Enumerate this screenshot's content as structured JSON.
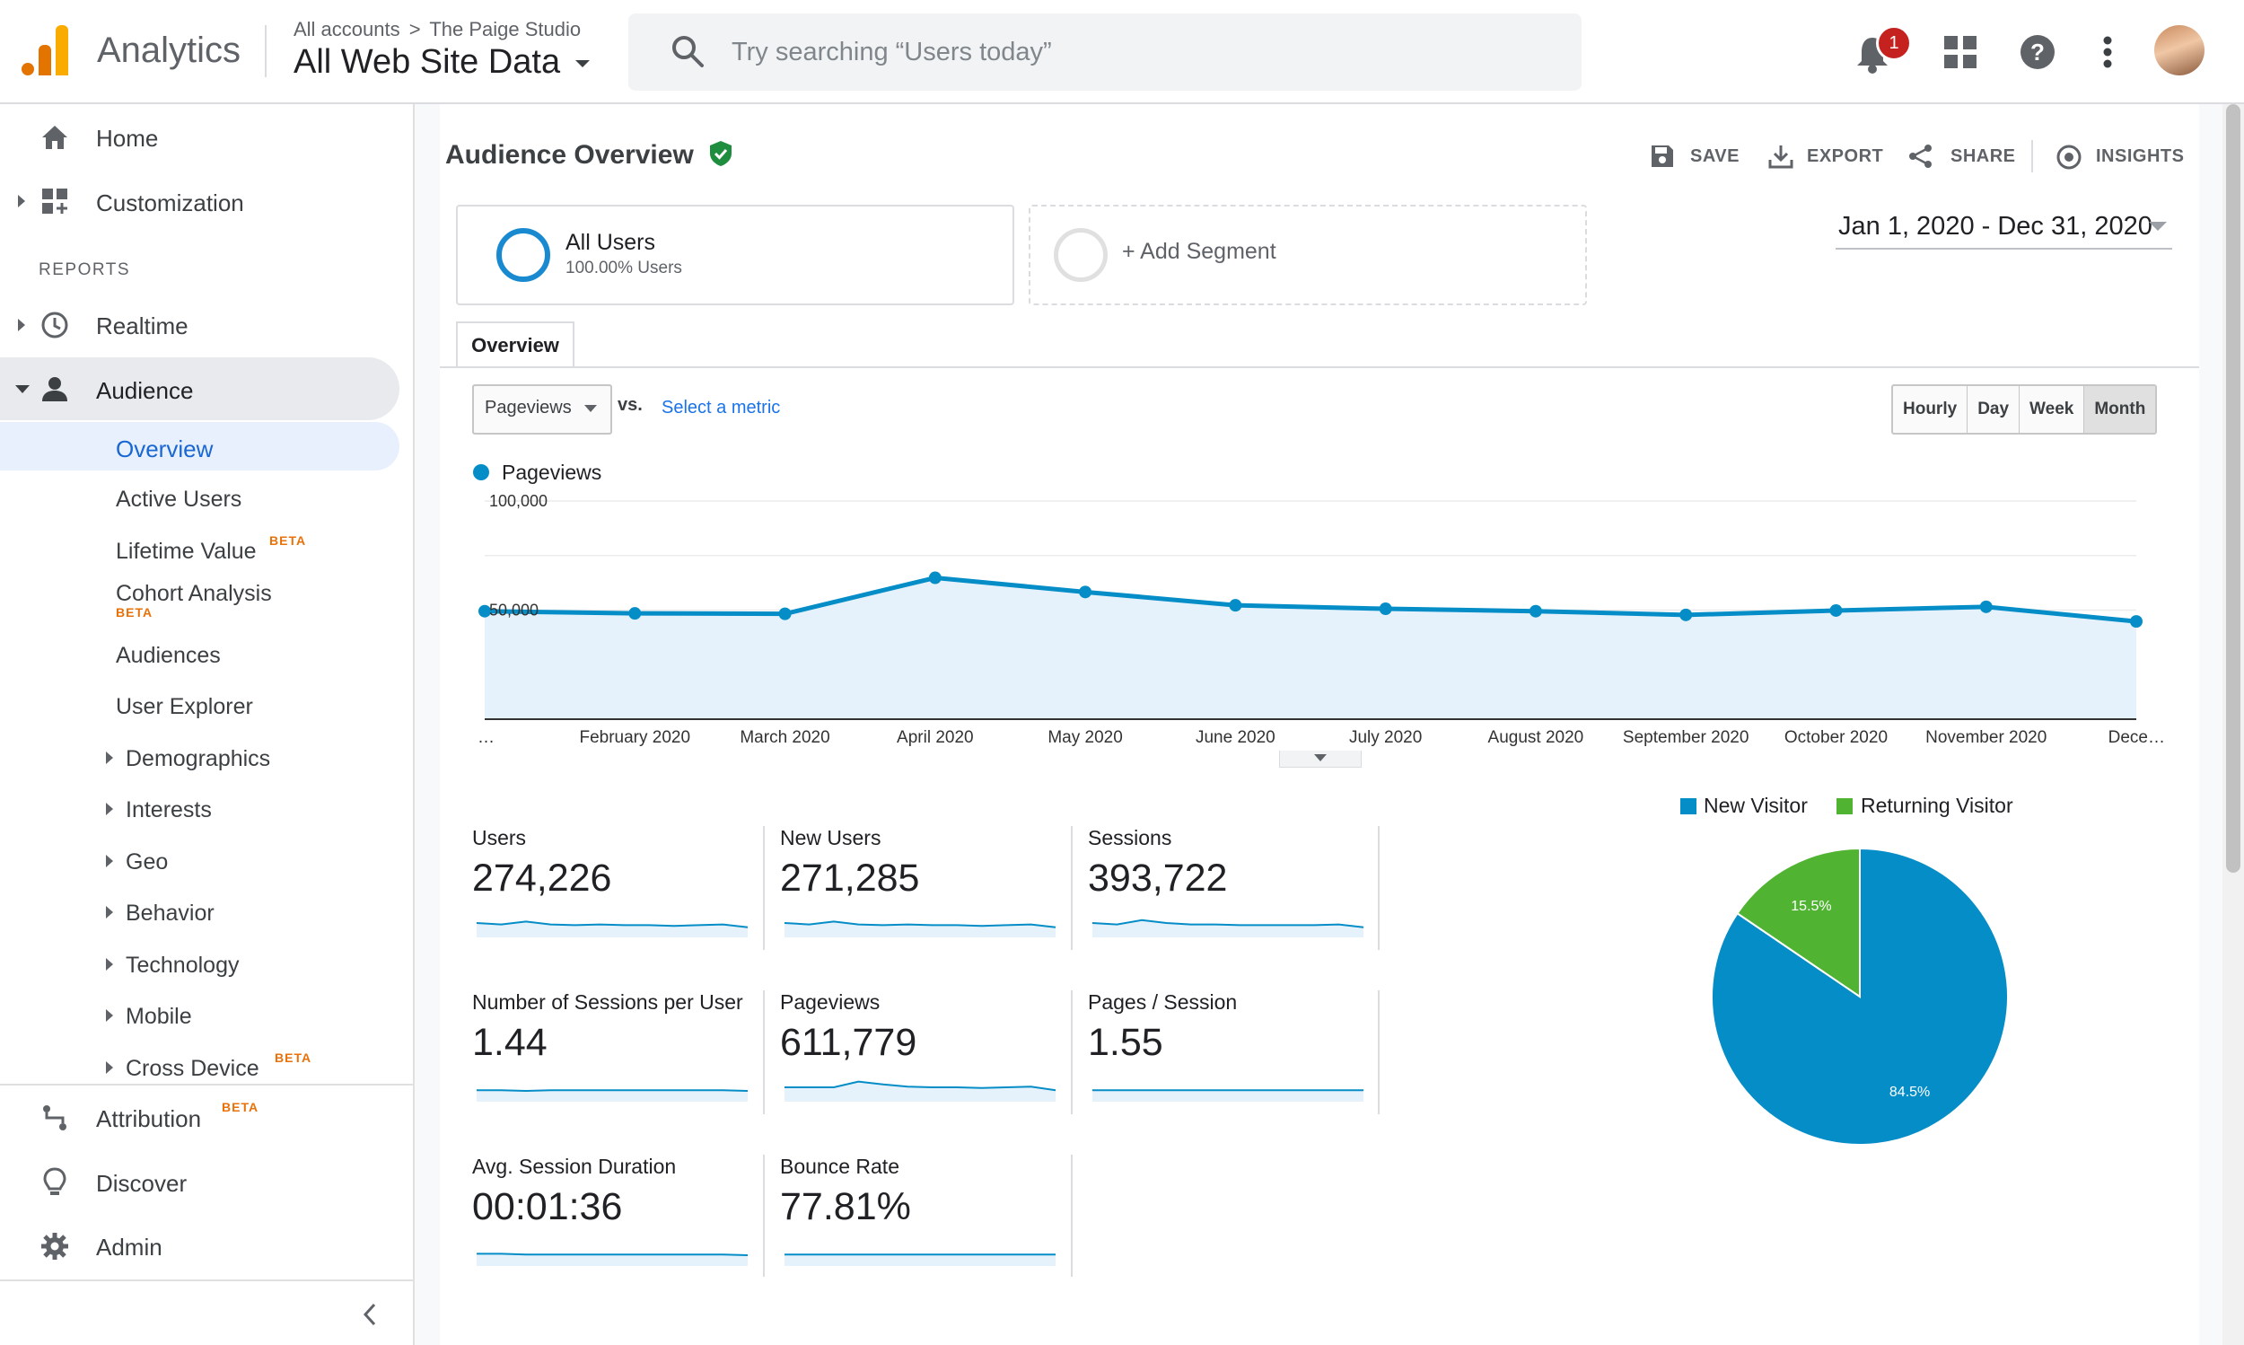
{
  "topbar": {
    "product_name": "Analytics",
    "breadcrumb": {
      "accounts": "All accounts",
      "separator": ">",
      "account": "The Paige Studio"
    },
    "view_name": "All Web Site Data",
    "search_placeholder": "Try searching “Users today”",
    "notification_count": "1",
    "icons": [
      "analytics-logo-icon",
      "search-icon",
      "bell-icon",
      "apps-grid-icon",
      "help-icon",
      "more-vert-icon",
      "avatar"
    ]
  },
  "sidebar": {
    "home": "Home",
    "customization": "Customization",
    "reports_heading": "REPORTS",
    "realtime": "Realtime",
    "audience": "Audience",
    "audience_items": {
      "overview": "Overview",
      "active_users": "Active Users",
      "lifetime_value": "Lifetime Value",
      "cohort_analysis": "Cohort Analysis",
      "audiences": "Audiences",
      "user_explorer": "User Explorer",
      "demographics": "Demographics",
      "interests": "Interests",
      "geo": "Geo",
      "behavior": "Behavior",
      "technology": "Technology",
      "mobile": "Mobile",
      "cross_device": "Cross Device"
    },
    "beta_badge": "BETA",
    "attribution": "Attribution",
    "discover": "Discover",
    "admin": "Admin"
  },
  "page": {
    "title": "Audience Overview",
    "actions": {
      "save": "SAVE",
      "export": "EXPORT",
      "share": "SHARE",
      "insights": "INSIGHTS"
    },
    "segment": {
      "name": "All Users",
      "share": "100.00% Users",
      "add": "+ Add Segment"
    },
    "date_range": "Jan 1, 2020 - Dec 31, 2020",
    "tab": "Overview",
    "metric_select": "Pageviews",
    "vs": "vs.",
    "select_metric": "Select a metric",
    "granularity": [
      "Hourly",
      "Day",
      "Week",
      "Month"
    ],
    "granularity_selected": "Month"
  },
  "chart_data": [
    {
      "type": "area",
      "legend": "Pageviews",
      "ytick_labels": [
        "100,000",
        "50,000"
      ],
      "ylim": [
        0,
        100000
      ],
      "x_labels": [
        "…",
        "February 2020",
        "March 2020",
        "April 2020",
        "May 2020",
        "June 2020",
        "July 2020",
        "August 2020",
        "September 2020",
        "October 2020",
        "November 2020",
        "Dece…"
      ],
      "series": [
        {
          "name": "Pageviews",
          "values": [
            49500,
            48500,
            48300,
            64800,
            58300,
            52200,
            50600,
            49500,
            47800,
            49800,
            51500,
            44800
          ]
        }
      ],
      "color": "#058dc7",
      "fill": "#e6f2fb"
    },
    {
      "type": "pie",
      "legend": [
        "New Visitor",
        "Returning Visitor"
      ],
      "values": [
        84.5,
        15.5
      ],
      "labels": [
        "84.5%",
        "15.5%"
      ],
      "colors": [
        "#058dc7",
        "#50b432"
      ]
    }
  ],
  "scorecards": [
    {
      "label": "Users",
      "value": "274,226",
      "spark": [
        40,
        38,
        42,
        38,
        37,
        38,
        37,
        37,
        36,
        37,
        38,
        34
      ]
    },
    {
      "label": "New Users",
      "value": "271,285",
      "spark": [
        40,
        38,
        42,
        38,
        37,
        38,
        37,
        37,
        36,
        37,
        38,
        34
      ]
    },
    {
      "label": "Sessions",
      "value": "393,722",
      "spark": [
        40,
        38,
        44,
        40,
        38,
        38,
        37,
        37,
        37,
        37,
        38,
        34
      ]
    },
    {
      "label": "Number of Sessions per User",
      "value": "1.44",
      "spark": [
        36,
        36,
        35,
        36,
        36,
        36,
        36,
        36,
        36,
        36,
        36,
        35
      ]
    },
    {
      "label": "Pageviews",
      "value": "611,779",
      "spark": [
        40,
        40,
        40,
        48,
        44,
        41,
        40,
        40,
        39,
        40,
        41,
        36
      ]
    },
    {
      "label": "Pages / Session",
      "value": "1.55",
      "spark": [
        36,
        36,
        36,
        36,
        36,
        36,
        36,
        36,
        36,
        36,
        36,
        36
      ]
    },
    {
      "label": "Avg. Session Duration",
      "value": "00:01:36",
      "spark": [
        37,
        37,
        36,
        36,
        36,
        36,
        36,
        36,
        36,
        36,
        36,
        35
      ]
    },
    {
      "label": "Bounce Rate",
      "value": "77.81%",
      "spark": [
        36,
        36,
        36,
        36,
        36,
        36,
        36,
        36,
        36,
        36,
        36,
        36
      ]
    }
  ]
}
